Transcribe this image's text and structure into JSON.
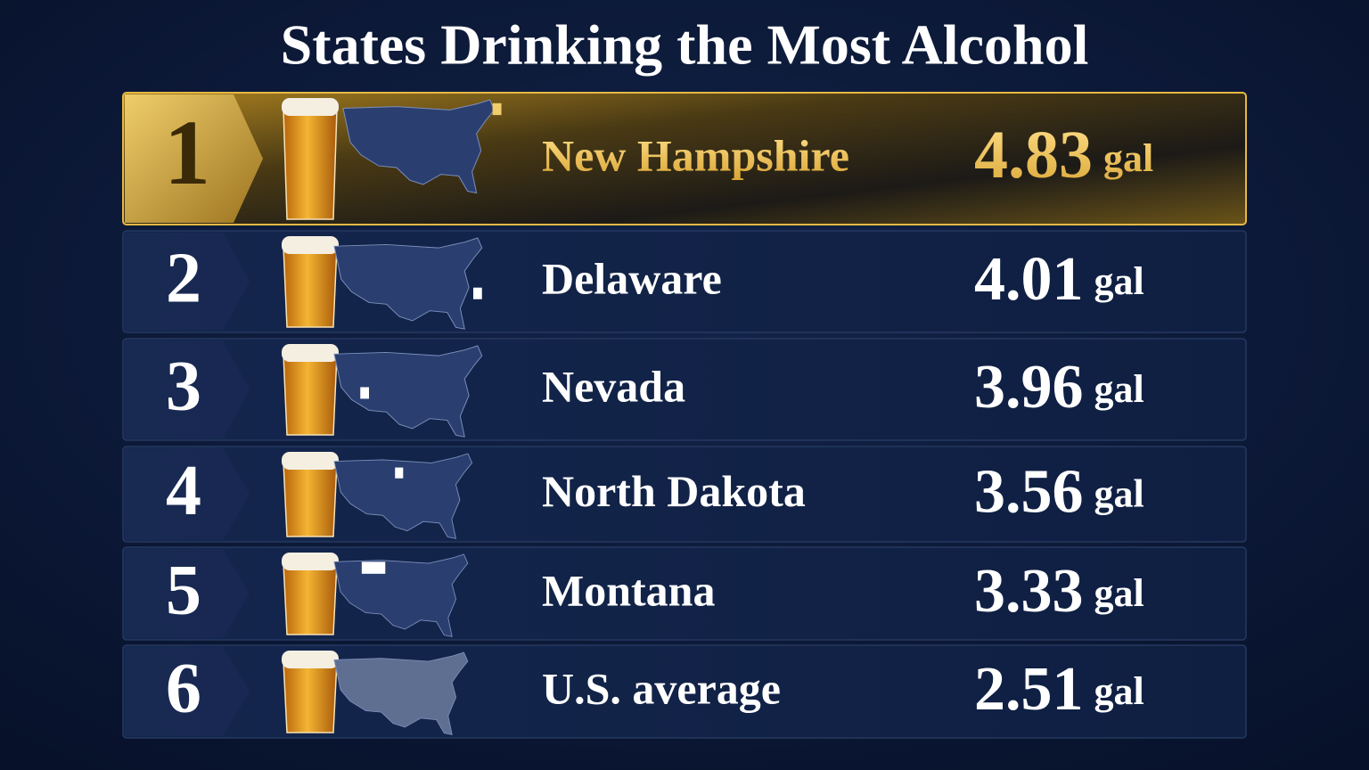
{
  "title": "States Drinking the Most Alcohol",
  "rows": [
    {
      "rank": 1,
      "state": "New Hampshire",
      "value": 4.83,
      "unit": "gal"
    },
    {
      "rank": 2,
      "state": "Delaware",
      "value": 4.01,
      "unit": "gal"
    },
    {
      "rank": 3,
      "state": "Nevada",
      "value": 3.96,
      "unit": "gal"
    },
    {
      "rank": 4,
      "state": "North Dakota",
      "value": 3.56,
      "unit": "gal"
    },
    {
      "rank": 5,
      "state": "Montana",
      "value": 3.33,
      "unit": "gal"
    },
    {
      "rank": 6,
      "state": "U.S. average",
      "value": 2.51,
      "unit": "gal"
    }
  ]
}
